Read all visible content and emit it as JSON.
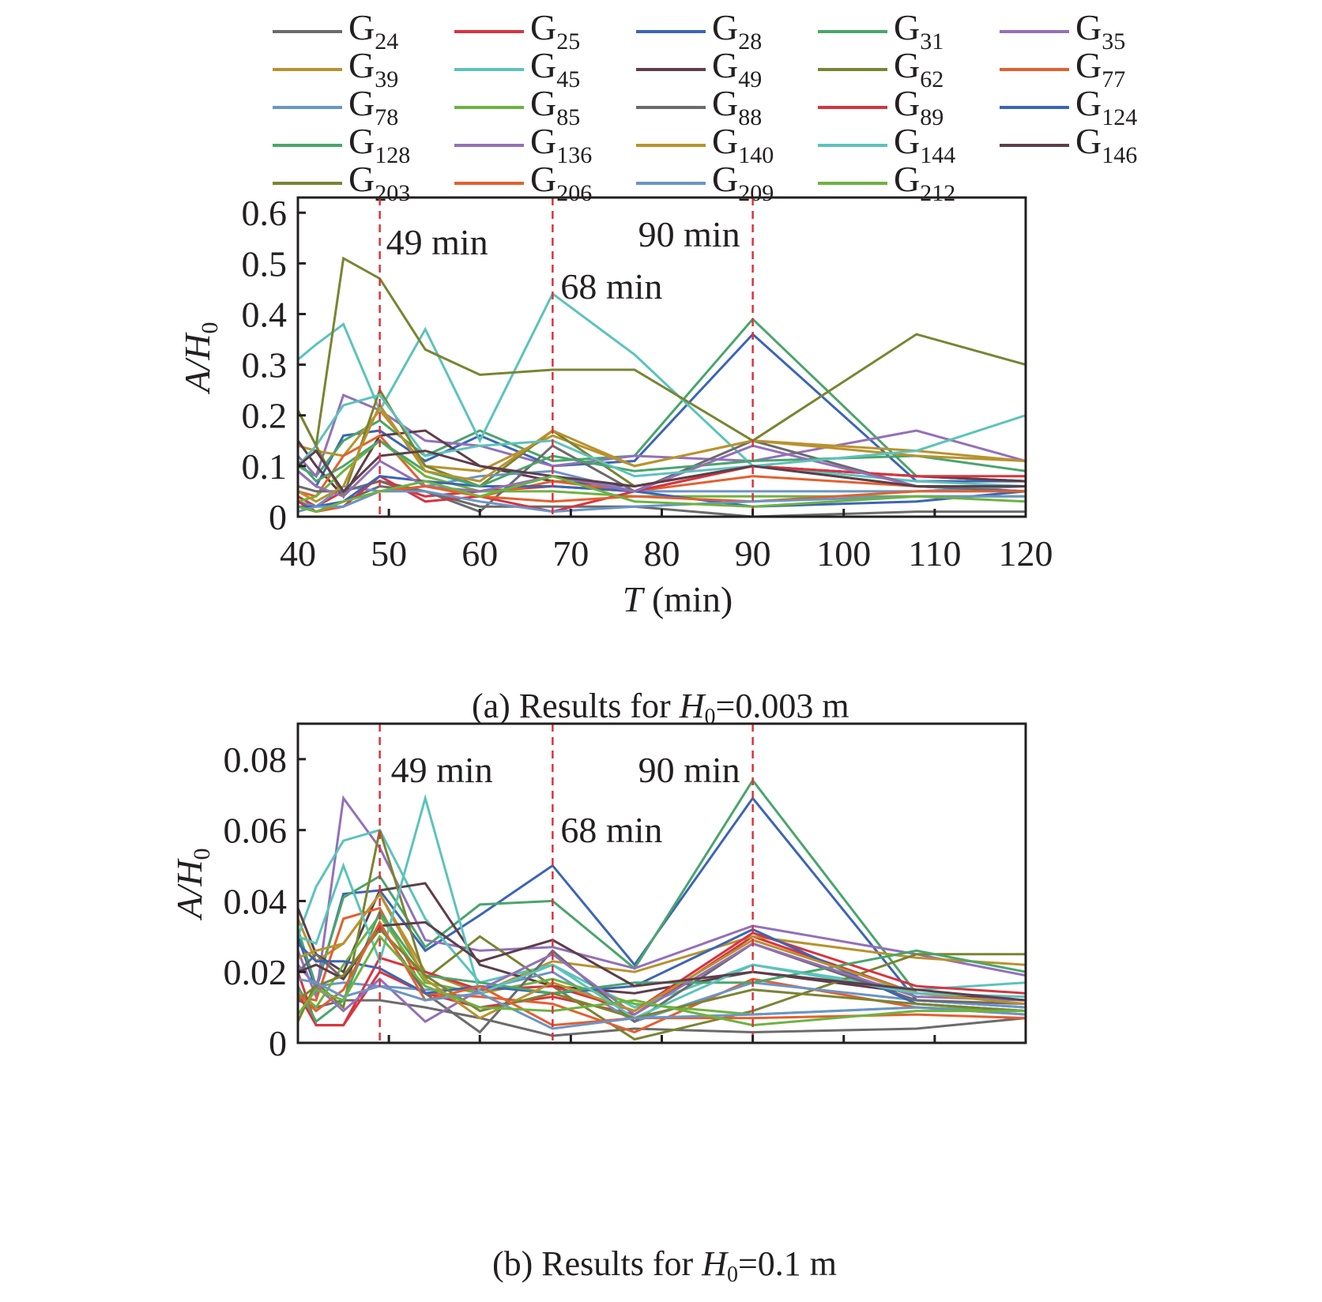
{
  "legend": [
    {
      "id": "G24",
      "base": "G",
      "sub": "24",
      "color": "#6b6b6b"
    },
    {
      "id": "G25",
      "base": "G",
      "sub": "25",
      "color": "#d8343f"
    },
    {
      "id": "G28",
      "base": "G",
      "sub": "28",
      "color": "#3c65b5"
    },
    {
      "id": "G31",
      "base": "G",
      "sub": "31",
      "color": "#4aa56c"
    },
    {
      "id": "G35",
      "base": "G",
      "sub": "35",
      "color": "#9370ba"
    },
    {
      "id": "G39",
      "base": "G",
      "sub": "39",
      "color": "#b8922e"
    },
    {
      "id": "G45",
      "base": "G",
      "sub": "45",
      "color": "#5cc3bb"
    },
    {
      "id": "G49",
      "base": "G",
      "sub": "49",
      "color": "#5e3d4b"
    },
    {
      "id": "G62",
      "base": "G",
      "sub": "62",
      "color": "#7a8432"
    },
    {
      "id": "G77",
      "base": "G",
      "sub": "77",
      "color": "#e3602f"
    },
    {
      "id": "G78",
      "base": "G",
      "sub": "78",
      "color": "#6a95c8"
    },
    {
      "id": "G85",
      "base": "G",
      "sub": "85",
      "color": "#6db33f"
    },
    {
      "id": "G88",
      "base": "G",
      "sub": "88",
      "color": "#6b6b6b"
    },
    {
      "id": "G89",
      "base": "G",
      "sub": "89",
      "color": "#d8343f"
    },
    {
      "id": "G124",
      "base": "G",
      "sub": "124",
      "color": "#3c65b5"
    },
    {
      "id": "G128",
      "base": "G",
      "sub": "128",
      "color": "#4aa56c"
    },
    {
      "id": "G136",
      "base": "G",
      "sub": "136",
      "color": "#9370ba"
    },
    {
      "id": "G140",
      "base": "G",
      "sub": "140",
      "color": "#b8922e"
    },
    {
      "id": "G144",
      "base": "G",
      "sub": "144",
      "color": "#5cc3bb"
    },
    {
      "id": "G146",
      "base": "G",
      "sub": "146",
      "color": "#5e3d4b"
    },
    {
      "id": "G203",
      "base": "G",
      "sub": "203",
      "color": "#7a8432"
    },
    {
      "id": "G206",
      "base": "G",
      "sub": "206",
      "color": "#e3602f"
    },
    {
      "id": "G209",
      "base": "G",
      "sub": "209",
      "color": "#6a95c8"
    },
    {
      "id": "G212",
      "base": "G",
      "sub": "212",
      "color": "#6db33f"
    }
  ],
  "chart_data": [
    {
      "type": "line",
      "caption": {
        "prefix": "(a) Results for ",
        "var": "H",
        "sub": "0",
        "suffix": "=0.003 m"
      },
      "xlabel": {
        "var": "T",
        "rest": " (min)"
      },
      "ylabel": {
        "var": "A/H",
        "sub": "0"
      },
      "xlim": [
        40,
        120
      ],
      "ylim": [
        0,
        0.63
      ],
      "xticks": [
        40,
        50,
        60,
        70,
        80,
        90,
        100,
        110,
        120
      ],
      "xtick_labels": [
        "40",
        "50",
        "60",
        "70",
        "80",
        "90",
        "100",
        "110",
        "120"
      ],
      "yticks": [
        0,
        0.1,
        0.2,
        0.3,
        0.4,
        0.5,
        0.6
      ],
      "ytick_labels": [
        "0",
        "0.1",
        "0.2",
        "0.3",
        "0.4",
        "0.5",
        "0.6"
      ],
      "reference_lines": [
        {
          "x": 49,
          "label": "49 min",
          "color": "#d8343f"
        },
        {
          "x": 68,
          "label": "68 min",
          "color": "#d8343f"
        },
        {
          "x": 90,
          "label": "90 min",
          "color": "#d8343f"
        }
      ],
      "x": [
        40,
        42,
        45,
        49,
        54,
        60,
        68,
        77,
        90,
        108,
        120
      ],
      "series": [
        {
          "name": "G24",
          "values": [
            0.02,
            0.01,
            0.03,
            0.06,
            0.05,
            0.02,
            0.02,
            0.02,
            0.0,
            0.01,
            0.01
          ]
        },
        {
          "name": "G25",
          "values": [
            0.04,
            0.02,
            0.05,
            0.07,
            0.04,
            0.05,
            0.06,
            0.05,
            0.1,
            0.08,
            0.07
          ]
        },
        {
          "name": "G28",
          "values": [
            0.09,
            0.06,
            0.16,
            0.17,
            0.11,
            0.16,
            0.1,
            0.11,
            0.36,
            0.07,
            0.07
          ]
        },
        {
          "name": "G31",
          "values": [
            0.1,
            0.08,
            0.15,
            0.19,
            0.12,
            0.17,
            0.11,
            0.12,
            0.39,
            0.08,
            0.07
          ]
        },
        {
          "name": "G35",
          "values": [
            0.12,
            0.08,
            0.24,
            0.21,
            0.15,
            0.14,
            0.1,
            0.12,
            0.11,
            0.17,
            0.11
          ]
        },
        {
          "name": "G39",
          "values": [
            0.14,
            0.13,
            0.12,
            0.21,
            0.1,
            0.09,
            0.16,
            0.1,
            0.15,
            0.13,
            0.11
          ]
        },
        {
          "name": "G45",
          "values": [
            0.31,
            0.34,
            0.38,
            0.21,
            0.37,
            0.15,
            0.44,
            0.32,
            0.1,
            0.07,
            0.06
          ]
        },
        {
          "name": "G49",
          "values": [
            0.15,
            0.1,
            0.04,
            0.16,
            0.17,
            0.1,
            0.07,
            0.06,
            0.1,
            0.08,
            0.07
          ]
        },
        {
          "name": "G62",
          "values": [
            0.21,
            0.14,
            0.04,
            0.25,
            0.1,
            0.06,
            0.17,
            0.06,
            0.1,
            0.06,
            0.05
          ]
        },
        {
          "name": "G77",
          "values": [
            0.05,
            0.04,
            0.12,
            0.16,
            0.06,
            0.04,
            0.07,
            0.05,
            0.08,
            0.06,
            0.05
          ]
        },
        {
          "name": "G78",
          "values": [
            0.03,
            0.02,
            0.06,
            0.05,
            0.06,
            0.08,
            0.09,
            0.05,
            0.05,
            0.05,
            0.06
          ]
        },
        {
          "name": "G85",
          "values": [
            0.03,
            0.04,
            0.09,
            0.15,
            0.08,
            0.05,
            0.05,
            0.04,
            0.04,
            0.04,
            0.04
          ]
        },
        {
          "name": "G88",
          "values": [
            0.06,
            0.05,
            0.05,
            0.07,
            0.05,
            0.01,
            0.14,
            0.05,
            0.15,
            0.06,
            0.05
          ]
        },
        {
          "name": "G89",
          "values": [
            0.03,
            0.01,
            0.02,
            0.08,
            0.03,
            0.04,
            0.01,
            0.05,
            0.1,
            0.08,
            0.08
          ]
        },
        {
          "name": "G124",
          "values": [
            0.02,
            0.02,
            0.03,
            0.08,
            0.07,
            0.06,
            0.06,
            0.05,
            0.02,
            0.03,
            0.05
          ]
        },
        {
          "name": "G128",
          "values": [
            0.11,
            0.07,
            0.1,
            0.15,
            0.09,
            0.06,
            0.12,
            0.09,
            0.11,
            0.12,
            0.09
          ]
        },
        {
          "name": "G136",
          "values": [
            0.09,
            0.06,
            0.04,
            0.11,
            0.06,
            0.05,
            0.08,
            0.05,
            0.14,
            0.06,
            0.06
          ]
        },
        {
          "name": "G140",
          "values": [
            0.05,
            0.03,
            0.06,
            0.22,
            0.09,
            0.07,
            0.17,
            0.1,
            0.15,
            0.12,
            0.11
          ]
        },
        {
          "name": "G144",
          "values": [
            0.1,
            0.14,
            0.22,
            0.24,
            0.12,
            0.14,
            0.15,
            0.08,
            0.1,
            0.13,
            0.2
          ]
        },
        {
          "name": "G146",
          "values": [
            0.1,
            0.13,
            0.05,
            0.12,
            0.13,
            0.1,
            0.08,
            0.06,
            0.1,
            0.06,
            0.06
          ]
        },
        {
          "name": "G203",
          "values": [
            0.21,
            0.14,
            0.51,
            0.47,
            0.33,
            0.28,
            0.29,
            0.29,
            0.15,
            0.36,
            0.3
          ]
        },
        {
          "name": "G206",
          "values": [
            0.02,
            0.01,
            0.02,
            0.05,
            0.06,
            0.04,
            0.03,
            0.04,
            0.03,
            0.05,
            0.05
          ]
        },
        {
          "name": "G209",
          "values": [
            0.01,
            0.02,
            0.02,
            0.05,
            0.05,
            0.03,
            0.01,
            0.02,
            0.03,
            0.04,
            0.04
          ]
        },
        {
          "name": "G212",
          "values": [
            0.02,
            0.01,
            0.03,
            0.05,
            0.07,
            0.04,
            0.08,
            0.03,
            0.02,
            0.04,
            0.03
          ]
        }
      ]
    },
    {
      "type": "line",
      "caption": {
        "prefix": "(b) Results for ",
        "var": "H",
        "sub": "0",
        "suffix": "=0.1 m"
      },
      "xlabel": {
        "var": "T",
        "rest": " (min)"
      },
      "ylabel": {
        "var": "A/H",
        "sub": "0"
      },
      "xlim": [
        40,
        120
      ],
      "ylim": [
        0,
        0.09
      ],
      "xticks": [
        40,
        50,
        60,
        70,
        80,
        90,
        100,
        110,
        120
      ],
      "xtick_labels": [
        "40",
        "50",
        "60",
        "70",
        "80",
        "90",
        "100",
        "110",
        "120"
      ],
      "yticks": [
        0,
        0.02,
        0.04,
        0.06,
        0.08
      ],
      "ytick_labels": [
        "0",
        "0.02",
        "0.04",
        "0.06",
        "0.08"
      ],
      "reference_lines": [
        {
          "x": 49,
          "label": "49 min",
          "color": "#d8343f"
        },
        {
          "x": 68,
          "label": "68 min",
          "color": "#d8343f"
        },
        {
          "x": 90,
          "label": "90 min",
          "color": "#d8343f"
        }
      ],
      "x": [
        40,
        42,
        45,
        49,
        54,
        60,
        68,
        77,
        90,
        108,
        120
      ],
      "series": [
        {
          "name": "G24",
          "values": [
            0.012,
            0.01,
            0.012,
            0.012,
            0.01,
            0.007,
            0.002,
            0.004,
            0.003,
            0.004,
            0.007
          ]
        },
        {
          "name": "G25",
          "values": [
            0.014,
            0.005,
            0.005,
            0.02,
            0.014,
            0.01,
            0.013,
            0.008,
            0.03,
            0.014,
            0.012
          ]
        },
        {
          "name": "G28",
          "values": [
            0.03,
            0.015,
            0.042,
            0.043,
            0.026,
            0.036,
            0.05,
            0.022,
            0.069,
            0.012,
            0.01
          ]
        },
        {
          "name": "G31",
          "values": [
            0.032,
            0.016,
            0.041,
            0.047,
            0.027,
            0.039,
            0.04,
            0.021,
            0.074,
            0.014,
            0.012
          ]
        },
        {
          "name": "G35",
          "values": [
            0.026,
            0.013,
            0.069,
            0.055,
            0.029,
            0.026,
            0.027,
            0.021,
            0.033,
            0.025,
            0.019
          ]
        },
        {
          "name": "G39",
          "values": [
            0.035,
            0.023,
            0.028,
            0.042,
            0.02,
            0.014,
            0.023,
            0.02,
            0.03,
            0.024,
            0.022
          ]
        },
        {
          "name": "G45",
          "values": [
            0.03,
            0.044,
            0.057,
            0.06,
            0.035,
            0.017,
            0.022,
            0.01,
            0.022,
            0.015,
            0.017
          ]
        },
        {
          "name": "G49",
          "values": [
            0.038,
            0.025,
            0.02,
            0.043,
            0.045,
            0.022,
            0.016,
            0.014,
            0.02,
            0.014,
            0.012
          ]
        },
        {
          "name": "G62",
          "values": [
            0.006,
            0.017,
            0.01,
            0.06,
            0.018,
            0.03,
            0.016,
            0.001,
            0.009,
            0.025,
            0.025
          ]
        },
        {
          "name": "G77",
          "values": [
            0.013,
            0.012,
            0.035,
            0.038,
            0.014,
            0.013,
            0.011,
            0.003,
            0.018,
            0.01,
            0.008
          ]
        },
        {
          "name": "G78",
          "values": [
            0.022,
            0.016,
            0.017,
            0.016,
            0.015,
            0.015,
            0.02,
            0.006,
            0.017,
            0.012,
            0.01
          ]
        },
        {
          "name": "G85",
          "values": [
            0.015,
            0.01,
            0.022,
            0.036,
            0.017,
            0.014,
            0.018,
            0.011,
            0.008,
            0.01,
            0.009
          ]
        },
        {
          "name": "G88",
          "values": [
            0.02,
            0.025,
            0.018,
            0.033,
            0.014,
            0.003,
            0.026,
            0.006,
            0.028,
            0.012,
            0.011
          ]
        },
        {
          "name": "G89",
          "values": [
            0.02,
            0.005,
            0.005,
            0.024,
            0.02,
            0.015,
            0.016,
            0.009,
            0.031,
            0.016,
            0.014
          ]
        },
        {
          "name": "G124",
          "values": [
            0.028,
            0.023,
            0.023,
            0.021,
            0.014,
            0.016,
            0.014,
            0.016,
            0.032,
            0.011,
            0.009
          ]
        },
        {
          "name": "G128",
          "values": [
            0.016,
            0.006,
            0.012,
            0.037,
            0.019,
            0.017,
            0.014,
            0.017,
            0.017,
            0.026,
            0.02
          ]
        },
        {
          "name": "G136",
          "values": [
            0.022,
            0.016,
            0.009,
            0.018,
            0.006,
            0.015,
            0.025,
            0.008,
            0.028,
            0.013,
            0.012
          ]
        },
        {
          "name": "G140",
          "values": [
            0.024,
            0.026,
            0.028,
            0.042,
            0.018,
            0.007,
            0.017,
            0.009,
            0.029,
            0.014,
            0.011
          ]
        },
        {
          "name": "G144",
          "values": [
            0.03,
            0.028,
            0.05,
            0.023,
            0.069,
            0.014,
            0.022,
            0.007,
            0.022,
            0.014,
            0.013
          ]
        },
        {
          "name": "G146",
          "values": [
            0.02,
            0.022,
            0.018,
            0.033,
            0.034,
            0.023,
            0.029,
            0.016,
            0.02,
            0.015,
            0.012
          ]
        },
        {
          "name": "G203",
          "values": [
            0.012,
            0.016,
            0.019,
            0.032,
            0.019,
            0.009,
            0.014,
            0.007,
            0.015,
            0.011,
            0.009
          ]
        },
        {
          "name": "G206",
          "values": [
            0.014,
            0.009,
            0.015,
            0.034,
            0.012,
            0.016,
            0.005,
            0.007,
            0.007,
            0.008,
            0.007
          ]
        },
        {
          "name": "G209",
          "values": [
            0.018,
            0.017,
            0.013,
            0.016,
            0.012,
            0.014,
            0.004,
            0.007,
            0.008,
            0.01,
            0.008
          ]
        },
        {
          "name": "G212",
          "values": [
            0.008,
            0.015,
            0.012,
            0.03,
            0.016,
            0.01,
            0.009,
            0.012,
            0.005,
            0.009,
            0.009
          ]
        }
      ]
    }
  ]
}
